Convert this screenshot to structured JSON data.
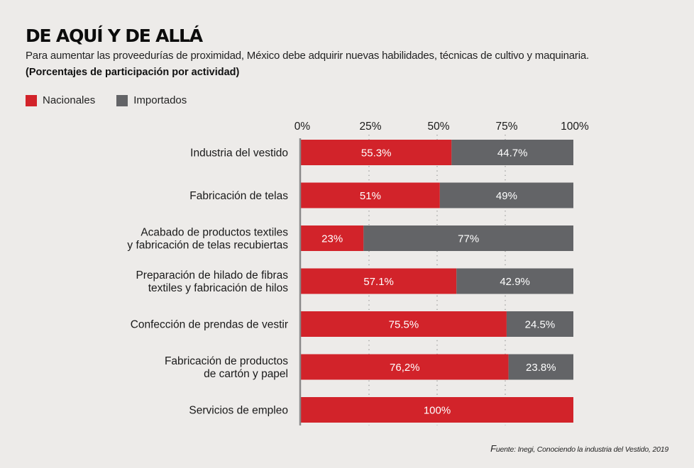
{
  "header": {
    "title": "DE AQUÍ Y DE ALLÁ",
    "subtitle": "Para aumentar las proveedurías de proximidad, México debe adquirir nuevas habilidades, técnicas de cultivo y maquinaria.",
    "note": "(Porcentajes de participación por actividad)"
  },
  "legend": [
    {
      "label": "Nacionales",
      "color": "#d2232a"
    },
    {
      "label": "Importados",
      "color": "#636467"
    }
  ],
  "source": {
    "prefix": "F",
    "text": "uente: Inegi, Conociendo la industria del Vestido, 2019"
  },
  "chart_data": {
    "type": "bar",
    "orientation": "horizontal",
    "stacked": true,
    "title": "DE AQUÍ Y DE ALLÁ",
    "xlabel": "",
    "ylabel": "",
    "xlim": [
      0,
      100
    ],
    "x_ticks": [
      0,
      25,
      50,
      75,
      100
    ],
    "x_tick_labels": [
      "0%",
      "25%",
      "50%",
      "75%",
      "100%"
    ],
    "grid": "vertical dotted",
    "legend_position": "top-left",
    "categories": [
      [
        "Industria del vestido"
      ],
      [
        "Fabricación de telas"
      ],
      [
        "Acabado de productos textiles",
        "y fabricación de telas recubiertas"
      ],
      [
        "Preparación de hilado de fibras",
        "textiles y fabricación de hilos"
      ],
      [
        "Confección de prendas de vestir"
      ],
      [
        "Fabricación de productos",
        "de cartón y papel"
      ],
      [
        "Servicios de empleo"
      ]
    ],
    "series": [
      {
        "name": "Nacionales",
        "color": "#d2232a",
        "values": [
          55.3,
          51,
          23,
          57.1,
          75.5,
          76.2,
          100
        ],
        "labels": [
          "55.3%",
          "51%",
          "23%",
          "57.1%",
          "75.5%",
          "76,2%",
          "100%"
        ]
      },
      {
        "name": "Importados",
        "color": "#636467",
        "values": [
          44.7,
          49,
          77,
          42.9,
          24.5,
          23.8,
          0
        ],
        "labels": [
          "44.7%",
          "49%",
          "77%",
          "42.9%",
          "24.5%",
          "23.8%",
          ""
        ]
      }
    ]
  }
}
